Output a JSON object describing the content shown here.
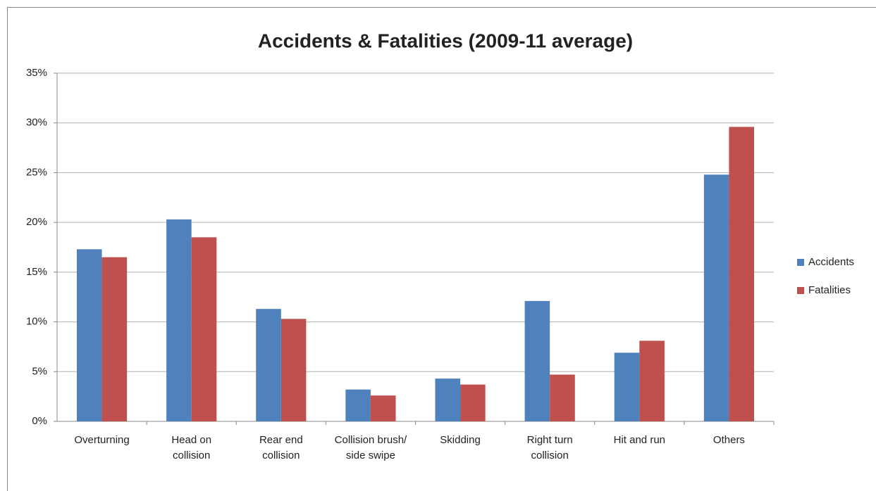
{
  "chart_data": {
    "type": "bar",
    "title": "Accidents & Fatalities (2009-11 average)",
    "categories": [
      "Overturning",
      "Head on collision",
      "Rear end collision",
      "Collision brush/  side swipe",
      "Skidding",
      "Right turn collision",
      "Hit and run",
      "Others"
    ],
    "series": [
      {
        "name": "Accidents",
        "color": "#4f81bd",
        "values": [
          17.3,
          20.3,
          11.3,
          3.2,
          4.3,
          12.1,
          6.9,
          24.8
        ]
      },
      {
        "name": "Fatalities",
        "color": "#c0504d",
        "values": [
          16.5,
          18.5,
          10.3,
          2.6,
          3.7,
          4.7,
          8.1,
          29.6
        ]
      }
    ],
    "ylim": [
      0,
      35
    ],
    "yticks": [
      {
        "value": 0,
        "label": "0%"
      },
      {
        "value": 5,
        "label": "5%"
      },
      {
        "value": 10,
        "label": "10%"
      },
      {
        "value": 15,
        "label": "15%"
      },
      {
        "value": 20,
        "label": "20%"
      },
      {
        "value": 25,
        "label": "25%"
      },
      {
        "value": 30,
        "label": "30%"
      },
      {
        "value": 35,
        "label": "35%"
      }
    ],
    "grid": true,
    "legend": "right"
  }
}
